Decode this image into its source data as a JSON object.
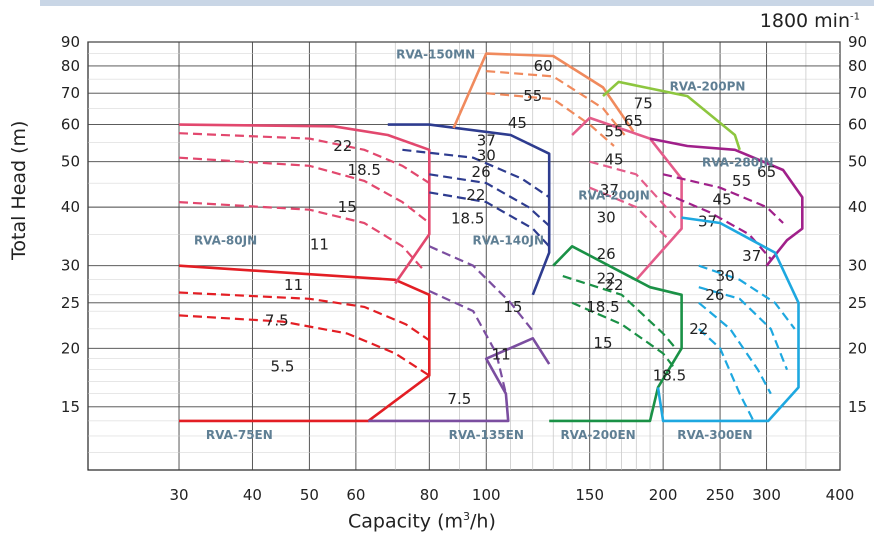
{
  "chart_data": {
    "type": "line",
    "speed": "1800 min",
    "speed_unit_sup": "-1",
    "xlabel": "Capacity (m",
    "xlabel_sup": "3",
    "xlabel_end": "/h)",
    "ylabel": "Total Head (m)",
    "x_scale": "log",
    "y_scale": "log",
    "xlim": [
      21,
      400
    ],
    "ylim": [
      11,
      90
    ],
    "x_ticks": [
      30,
      40,
      50,
      60,
      80,
      100,
      150,
      200,
      250,
      300,
      400
    ],
    "y_ticks": [
      15,
      20,
      25,
      30,
      40,
      50,
      60,
      70,
      80,
      90
    ],
    "grid": true,
    "models": [
      {
        "name": "RVA-75EN",
        "color": "#e31e24",
        "outline": [
          [
            30,
            14
          ],
          [
            63,
            14
          ],
          [
            80,
            17.5
          ],
          [
            80,
            26
          ],
          [
            70,
            28
          ],
          [
            30,
            30
          ]
        ],
        "curves": [
          [
            [
              30,
              26.3
            ],
            [
              50,
              25.5
            ],
            [
              62,
              24.5
            ],
            [
              73,
              22.5
            ],
            [
              80,
              20.8
            ]
          ],
          [
            [
              30,
              23.5
            ],
            [
              45,
              22.8
            ],
            [
              58,
              21.5
            ],
            [
              70,
              19.5
            ],
            [
              80,
              17.5
            ]
          ]
        ],
        "labels": [
          {
            "text": "11",
            "x": 47,
            "y": 27.3
          },
          {
            "text": "7.5",
            "x": 44,
            "y": 22.9
          },
          {
            "text": "5.5",
            "x": 45,
            "y": 18.3
          }
        ],
        "label_pos": [
          38,
          12.8
        ]
      },
      {
        "name": "RVA-80JN",
        "color": "#e2486e",
        "outline": [
          [
            30,
            60
          ],
          [
            55,
            59.5
          ],
          [
            68,
            57
          ],
          [
            80,
            53
          ],
          [
            80,
            35
          ],
          [
            70,
            27.5
          ]
        ],
        "curves": [
          [
            [
              30,
              57.5
            ],
            [
              50,
              56
            ],
            [
              62,
              53
            ],
            [
              72,
              49
            ],
            [
              80,
              45
            ]
          ],
          [
            [
              30,
              51
            ],
            [
              50,
              49
            ],
            [
              62,
              45.5
            ],
            [
              72,
              41
            ],
            [
              80,
              37
            ]
          ],
          [
            [
              30,
              41
            ],
            [
              50,
              39.5
            ],
            [
              62,
              37
            ],
            [
              72,
              33
            ],
            [
              78,
              29.5
            ]
          ]
        ],
        "labels": [
          {
            "text": "22",
            "x": 57,
            "y": 54
          },
          {
            "text": "18.5",
            "x": 62,
            "y": 48
          },
          {
            "text": "15",
            "x": 58,
            "y": 40
          },
          {
            "text": "11",
            "x": 52,
            "y": 33.3
          }
        ],
        "label_pos": [
          36,
          33.3
        ]
      },
      {
        "name": "RVA-135EN",
        "color": "#7b4ea0",
        "outline": [
          [
            63,
            14
          ],
          [
            109,
            14
          ],
          [
            108,
            16
          ],
          [
            100,
            19
          ],
          [
            120,
            21
          ],
          [
            128,
            18.5
          ]
        ],
        "curves": [
          [
            [
              80,
              33
            ],
            [
              95,
              30
            ],
            [
              110,
              25
            ],
            [
              121,
              21.5
            ]
          ],
          [
            [
              80,
              26.5
            ],
            [
              95,
              24
            ],
            [
              104,
              19.5
            ],
            [
              108,
              16
            ]
          ]
        ],
        "labels": [
          {
            "text": "15",
            "x": 111,
            "y": 24.5
          },
          {
            "text": "11",
            "x": 106,
            "y": 19.4
          },
          {
            "text": "7.5",
            "x": 90,
            "y": 15.6
          }
        ],
        "label_pos": [
          100,
          12.8
        ]
      },
      {
        "name": "RVA-140JN",
        "color": "#2e3c8f",
        "outline": [
          [
            68,
            60
          ],
          [
            80,
            60
          ],
          [
            110,
            57
          ],
          [
            128,
            52
          ],
          [
            128,
            32
          ],
          [
            120,
            26
          ]
        ],
        "curves": [
          [
            [
              72,
              53
            ],
            [
              95,
              51
            ],
            [
              115,
              46
            ],
            [
              128,
              42
            ]
          ],
          [
            [
              80,
              47
            ],
            [
              100,
              45
            ],
            [
              118,
              40
            ],
            [
              128,
              36.5
            ]
          ],
          [
            [
              80,
              43
            ],
            [
              100,
              41
            ],
            [
              120,
              36
            ],
            [
              128,
              33
            ]
          ]
        ],
        "labels": [
          {
            "text": "37",
            "x": 100,
            "y": 55.5
          },
          {
            "text": "30",
            "x": 100,
            "y": 51.5
          },
          {
            "text": "26",
            "x": 98,
            "y": 47.5
          },
          {
            "text": "22",
            "x": 96,
            "y": 42.5
          },
          {
            "text": "18.5",
            "x": 93,
            "y": 37.8
          }
        ],
        "label_pos": [
          109,
          33.3
        ]
      },
      {
        "name": "RVA-150MN",
        "color": "#f08a5d",
        "outline": [
          [
            88,
            59
          ],
          [
            100,
            85
          ],
          [
            130,
            84
          ],
          [
            158,
            72
          ],
          [
            178,
            58
          ]
        ],
        "curves": [
          [
            [
              100,
              78
            ],
            [
              130,
              76
            ],
            [
              158,
              65
            ],
            [
              172,
              57
            ]
          ],
          [
            [
              100,
              70
            ],
            [
              130,
              68
            ],
            [
              150,
              60
            ],
            [
              165,
              54
            ]
          ]
        ],
        "labels": [
          {
            "text": "60",
            "x": 125,
            "y": 80
          },
          {
            "text": "55",
            "x": 120,
            "y": 69
          },
          {
            "text": "45",
            "x": 113,
            "y": 60.5
          }
        ],
        "label_pos": [
          82,
          83
        ]
      },
      {
        "name": "RVA-200PN",
        "color": "#8dc63f",
        "outline": [
          [
            158,
            69
          ],
          [
            168,
            74
          ],
          [
            220,
            69
          ],
          [
            265,
            57
          ],
          [
            270,
            53
          ]
        ],
        "curves": [],
        "labels": [
          {
            "text": "75",
            "x": 185,
            "y": 66.5
          },
          {
            "text": "65",
            "x": 178,
            "y": 61
          }
        ],
        "label_pos": [
          238,
          71
        ]
      },
      {
        "name": "RVA-200JN",
        "color": "#e45c8a",
        "outline": [
          [
            140,
            57
          ],
          [
            150,
            62
          ],
          [
            190,
            56
          ],
          [
            215,
            46
          ],
          [
            215,
            36
          ],
          [
            180,
            28
          ]
        ],
        "curves": [
          [
            [
              150,
              50
            ],
            [
              180,
              47
            ],
            [
              210,
              38
            ]
          ],
          [
            [
              150,
              44
            ],
            [
              180,
              40
            ],
            [
              205,
              34
            ]
          ]
        ],
        "labels": [
          {
            "text": "55",
            "x": 165,
            "y": 58
          },
          {
            "text": "45",
            "x": 165,
            "y": 50.5
          },
          {
            "text": "37",
            "x": 162,
            "y": 43.5
          },
          {
            "text": "30",
            "x": 160,
            "y": 38
          },
          {
            "text": "26",
            "x": 160,
            "y": 31.8
          },
          {
            "text": "22",
            "x": 165,
            "y": 27.3
          }
        ],
        "label_pos": [
          165,
          41.5
        ]
      },
      {
        "name": "RVA-280JN",
        "color": "#a0208a",
        "outline": [
          [
            190,
            56
          ],
          [
            220,
            54
          ],
          [
            265,
            53
          ],
          [
            320,
            48
          ],
          [
            345,
            42
          ],
          [
            345,
            36
          ],
          [
            325,
            34
          ],
          [
            300,
            30
          ]
        ],
        "curves": [
          [
            [
              200,
              47
            ],
            [
              250,
              44
            ],
            [
              300,
              40
            ],
            [
              320,
              37
            ]
          ],
          [
            [
              200,
              43
            ],
            [
              240,
              39
            ],
            [
              280,
              35
            ],
            [
              305,
              31
            ]
          ]
        ],
        "labels": [
          {
            "text": "65",
            "x": 300,
            "y": 47.5
          },
          {
            "text": "55",
            "x": 272,
            "y": 45.5
          },
          {
            "text": "45",
            "x": 252,
            "y": 41.5
          },
          {
            "text": "37",
            "x": 238,
            "y": 37.3
          }
        ],
        "label_pos": [
          268,
          48.8
        ]
      },
      {
        "name": "RVA-200EN",
        "color": "#1a9146",
        "outline": [
          [
            128,
            14
          ],
          [
            190,
            14
          ],
          [
            196,
            16.5
          ],
          [
            215,
            20
          ],
          [
            215,
            26
          ],
          [
            190,
            27
          ],
          [
            140,
            33
          ],
          [
            130,
            30
          ]
        ],
        "curves": [
          [
            [
              135,
              28.5
            ],
            [
              170,
              26
            ],
            [
              200,
              21.5
            ],
            [
              210,
              20
            ]
          ],
          [
            [
              140,
              25
            ],
            [
              170,
              22.5
            ],
            [
              200,
              19.5
            ],
            [
              210,
              18
            ]
          ]
        ],
        "labels": [
          {
            "text": "22",
            "x": 160,
            "y": 28.2
          },
          {
            "text": "18.5",
            "x": 158,
            "y": 24.5
          },
          {
            "text": "15",
            "x": 158,
            "y": 20.5
          },
          {
            "text": "18.5",
            "x": 205,
            "y": 17.5
          }
        ],
        "label_pos": [
          155,
          12.8
        ]
      },
      {
        "name": "RVA-300EN",
        "color": "#1ea8e0",
        "outline": [
          [
            196,
            16.5
          ],
          [
            200,
            14
          ],
          [
            302,
            14
          ],
          [
            340,
            16.5
          ],
          [
            340,
            25
          ],
          [
            310,
            32
          ],
          [
            250,
            37
          ],
          [
            215,
            38
          ]
        ],
        "curves": [
          [
            [
              230,
              30
            ],
            [
              270,
              28
            ],
            [
              310,
              25
            ],
            [
              335,
              22
            ]
          ],
          [
            [
              230,
              27
            ],
            [
              270,
              25.5
            ],
            [
              305,
              22
            ],
            [
              325,
              18
            ]
          ],
          [
            [
              230,
              25
            ],
            [
              260,
              22
            ],
            [
              290,
              18
            ],
            [
              305,
              16
            ]
          ],
          [
            [
              230,
              22
            ],
            [
              250,
              20
            ],
            [
              270,
              16
            ],
            [
              285,
              14
            ]
          ]
        ],
        "labels": [
          {
            "text": "37",
            "x": 283,
            "y": 31.5
          },
          {
            "text": "30",
            "x": 255,
            "y": 28.5
          },
          {
            "text": "26",
            "x": 245,
            "y": 26
          },
          {
            "text": "22",
            "x": 230,
            "y": 22
          }
        ],
        "label_pos": [
          245,
          12.8
        ]
      }
    ]
  }
}
